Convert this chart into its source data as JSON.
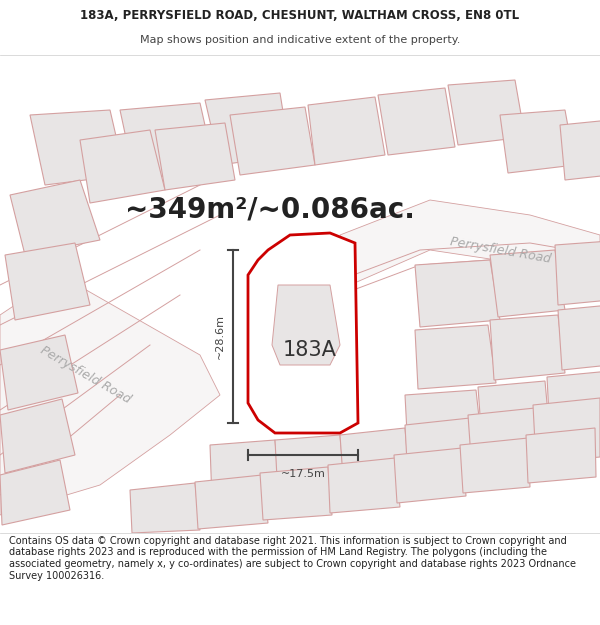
{
  "title_line1": "183A, PERRYSFIELD ROAD, CHESHUNT, WALTHAM CROSS, EN8 0TL",
  "title_line2": "Map shows position and indicative extent of the property.",
  "area_text": "~349m²/~0.086ac.",
  "label_183A": "183A",
  "label_width": "~17.5m",
  "label_height": "~28.6m",
  "road_label_left": "Perrysfield Road",
  "road_label_right": "Perrysfield Road",
  "footer_text": "Contains OS data © Crown copyright and database right 2021. This information is subject to Crown copyright and database rights 2023 and is reproduced with the permission of HM Land Registry. The polygons (including the associated geometry, namely x, y co-ordinates) are subject to Crown copyright and database rights 2023 Ordnance Survey 100026316.",
  "map_bg": "#f7f5f5",
  "plot_fill": "#ffffff",
  "plot_outline": "#cc0000",
  "surr_fill": "#e8e5e5",
  "surr_edge": "#d4a0a0",
  "road_fill": "#f7f5f5",
  "road_edge": "#d4a0a0",
  "dim_color": "#444444",
  "road_label_color": "#aaaaaa",
  "area_fontsize": 20,
  "label_fontsize": 15,
  "footer_fontsize": 7
}
